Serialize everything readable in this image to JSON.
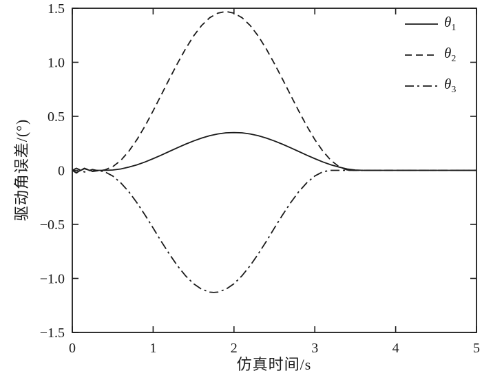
{
  "chart_data": {
    "type": "line",
    "title": "",
    "xlabel": "仿真时间/s",
    "ylabel": "驱动角误差/(°)",
    "xlim": [
      0,
      5
    ],
    "ylim": [
      -1.5,
      1.5
    ],
    "x_ticks": [
      0,
      1,
      2,
      3,
      4,
      5
    ],
    "x_tick_labels": [
      "0",
      "1",
      "2",
      "3",
      "4",
      "5"
    ],
    "y_ticks": [
      -1.5,
      -1.0,
      -0.5,
      0,
      0.5,
      1.0,
      1.5
    ],
    "y_tick_labels": [
      "−1.5",
      "−1.0",
      "−0.5",
      "0",
      "0.5",
      "1.0",
      "1.5"
    ],
    "grid": false,
    "legend_position": "top-right",
    "axis_color": "#1a1a1a",
    "line_color": "#1a1a1a",
    "series": [
      {
        "name": "theta1",
        "symbol": "θ",
        "sub": "1",
        "style": "solid",
        "points": [
          [
            0,
            0
          ],
          [
            0.05,
            -0.02
          ],
          [
            0.15,
            0.015
          ],
          [
            0.25,
            -0.008
          ],
          [
            0.3,
            0
          ],
          [
            0.4,
            0
          ],
          [
            0.5,
            0.003
          ],
          [
            0.6,
            0.013
          ],
          [
            0.7,
            0.03
          ],
          [
            0.8,
            0.051
          ],
          [
            0.9,
            0.078
          ],
          [
            1.0,
            0.108
          ],
          [
            1.1,
            0.141
          ],
          [
            1.2,
            0.175
          ],
          [
            1.3,
            0.209
          ],
          [
            1.4,
            0.242
          ],
          [
            1.5,
            0.272
          ],
          [
            1.6,
            0.299
          ],
          [
            1.7,
            0.321
          ],
          [
            1.8,
            0.337
          ],
          [
            1.9,
            0.347
          ],
          [
            2.0,
            0.35
          ],
          [
            2.1,
            0.347
          ],
          [
            2.2,
            0.337
          ],
          [
            2.3,
            0.321
          ],
          [
            2.4,
            0.299
          ],
          [
            2.5,
            0.272
          ],
          [
            2.6,
            0.242
          ],
          [
            2.7,
            0.209
          ],
          [
            2.8,
            0.175
          ],
          [
            2.9,
            0.141
          ],
          [
            3.0,
            0.108
          ],
          [
            3.1,
            0.078
          ],
          [
            3.2,
            0.051
          ],
          [
            3.3,
            0.03
          ],
          [
            3.4,
            0.013
          ],
          [
            3.5,
            0.003
          ],
          [
            3.6,
            0
          ],
          [
            4.0,
            0
          ],
          [
            5.0,
            0
          ]
        ]
      },
      {
        "name": "theta2",
        "symbol": "θ",
        "sub": "2",
        "style": "dashed",
        "points": [
          [
            0,
            0
          ],
          [
            0.05,
            -0.025
          ],
          [
            0.15,
            0.02
          ],
          [
            0.25,
            -0.01
          ],
          [
            0.35,
            0
          ],
          [
            0.4,
            0.004
          ],
          [
            0.5,
            0.034
          ],
          [
            0.6,
            0.092
          ],
          [
            0.7,
            0.178
          ],
          [
            0.8,
            0.285
          ],
          [
            0.9,
            0.411
          ],
          [
            1.0,
            0.551
          ],
          [
            1.1,
            0.697
          ],
          [
            1.2,
            0.845
          ],
          [
            1.3,
            0.988
          ],
          [
            1.4,
            1.123
          ],
          [
            1.5,
            1.243
          ],
          [
            1.6,
            1.341
          ],
          [
            1.7,
            1.413
          ],
          [
            1.8,
            1.455
          ],
          [
            1.9,
            1.47
          ],
          [
            2.0,
            1.455
          ],
          [
            2.1,
            1.413
          ],
          [
            2.2,
            1.341
          ],
          [
            2.3,
            1.243
          ],
          [
            2.4,
            1.123
          ],
          [
            2.5,
            0.988
          ],
          [
            2.6,
            0.845
          ],
          [
            2.7,
            0.697
          ],
          [
            2.8,
            0.551
          ],
          [
            2.9,
            0.411
          ],
          [
            3.0,
            0.285
          ],
          [
            3.1,
            0.178
          ],
          [
            3.2,
            0.092
          ],
          [
            3.3,
            0.034
          ],
          [
            3.4,
            0.004
          ],
          [
            3.45,
            0
          ],
          [
            3.6,
            0
          ],
          [
            4.0,
            0
          ],
          [
            5.0,
            0
          ]
        ]
      },
      {
        "name": "theta3",
        "symbol": "θ",
        "sub": "3",
        "style": "dashdot",
        "points": [
          [
            0,
            0
          ],
          [
            0.05,
            0.02
          ],
          [
            0.15,
            -0.015
          ],
          [
            0.25,
            0.008
          ],
          [
            0.3,
            0
          ],
          [
            0.4,
            -0.013
          ],
          [
            0.5,
            -0.052
          ],
          [
            0.6,
            -0.115
          ],
          [
            0.7,
            -0.199
          ],
          [
            0.8,
            -0.3
          ],
          [
            0.9,
            -0.414
          ],
          [
            1.0,
            -0.534
          ],
          [
            1.1,
            -0.657
          ],
          [
            1.2,
            -0.774
          ],
          [
            1.3,
            -0.882
          ],
          [
            1.4,
            -0.975
          ],
          [
            1.5,
            -1.049
          ],
          [
            1.6,
            -1.1
          ],
          [
            1.7,
            -1.127
          ],
          [
            1.75,
            -1.13
          ],
          [
            1.8,
            -1.127
          ],
          [
            1.9,
            -1.1
          ],
          [
            2.0,
            -1.049
          ],
          [
            2.1,
            -0.975
          ],
          [
            2.2,
            -0.882
          ],
          [
            2.3,
            -0.774
          ],
          [
            2.4,
            -0.657
          ],
          [
            2.5,
            -0.534
          ],
          [
            2.6,
            -0.414
          ],
          [
            2.7,
            -0.3
          ],
          [
            2.8,
            -0.199
          ],
          [
            2.9,
            -0.115
          ],
          [
            3.0,
            -0.052
          ],
          [
            3.1,
            -0.013
          ],
          [
            3.2,
            0
          ],
          [
            3.5,
            0
          ],
          [
            4.0,
            0
          ],
          [
            5.0,
            0
          ]
        ]
      }
    ]
  }
}
